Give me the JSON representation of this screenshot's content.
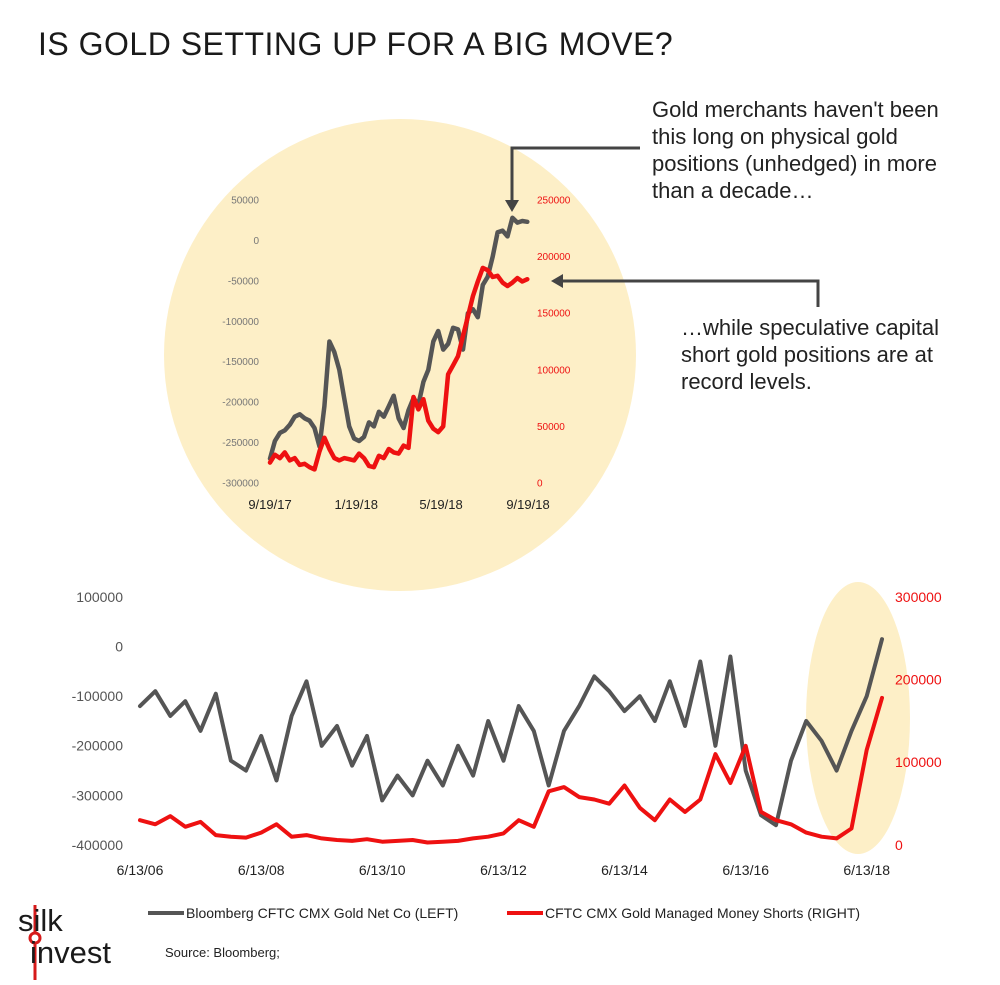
{
  "header": {
    "title": "IS GOLD SETTING UP FOR A BIG MOVE?"
  },
  "callouts": {
    "top": "Gold merchants haven't been this long on physical gold positions (unhedged) in more than a decade…",
    "bottom": "…while speculative capital short gold positions are at record levels."
  },
  "legend": {
    "left_label": "Bloomberg CFTC CMX Gold Net Co (LEFT)",
    "right_label": "CFTC CMX Gold Managed Money Shorts (RIGHT)"
  },
  "source": "Source:  Bloomberg;",
  "logo": {
    "line1": "silk",
    "line2": "invest"
  },
  "colors": {
    "net": "#555555",
    "shorts": "#ee1111",
    "highlight": "#fdefc7"
  },
  "chart_data": [
    {
      "type": "line",
      "title": "",
      "x_tick_labels": [
        "9/19/17",
        "1/19/18",
        "5/19/18",
        "9/19/18"
      ],
      "y_left_ticks": [
        50000,
        0,
        -50000,
        -100000,
        -150000,
        -200000,
        -250000,
        -300000
      ],
      "y_left_tick_labels": [
        "50000",
        "0",
        "-50000",
        "-100000",
        "-150000",
        "-200000",
        "-250000",
        "-300000"
      ],
      "y_right_ticks": [
        250000,
        200000,
        150000,
        100000,
        50000,
        0
      ],
      "y_right_tick_labels": [
        "250000",
        "200000",
        "150000",
        "100000",
        "50000",
        "0"
      ],
      "y_left_range": [
        -300000,
        50000
      ],
      "y_right_range": [
        0,
        250000
      ],
      "grid": false,
      "series": [
        {
          "axis": "left",
          "x": [
            "2017-09-19",
            "2017-09-26",
            "2017-10-03",
            "2017-10-10",
            "2017-10-17",
            "2017-10-24",
            "2017-10-31",
            "2017-11-07",
            "2017-11-14",
            "2017-11-21",
            "2017-11-28",
            "2017-12-05",
            "2017-12-12",
            "2017-12-19",
            "2017-12-26",
            "2018-01-02",
            "2018-01-09",
            "2018-01-16",
            "2018-01-23",
            "2018-01-30",
            "2018-02-06",
            "2018-02-13",
            "2018-02-20",
            "2018-02-27",
            "2018-03-06",
            "2018-03-13",
            "2018-03-20",
            "2018-03-27",
            "2018-04-03",
            "2018-04-10",
            "2018-04-17",
            "2018-04-24",
            "2018-05-01",
            "2018-05-08",
            "2018-05-15",
            "2018-05-22",
            "2018-05-29",
            "2018-06-05",
            "2018-06-12",
            "2018-06-19",
            "2018-06-26",
            "2018-07-03",
            "2018-07-10",
            "2018-07-17",
            "2018-07-24",
            "2018-07-31",
            "2018-08-07",
            "2018-08-14",
            "2018-08-21",
            "2018-08-28",
            "2018-09-04",
            "2018-09-11",
            "2018-09-18"
          ],
          "values": [
            -270000,
            -248000,
            -238000,
            -235000,
            -228000,
            -218000,
            -215000,
            -220000,
            -223000,
            -232000,
            -255000,
            -205000,
            -125000,
            -138000,
            -160000,
            -195000,
            -230000,
            -245000,
            -248000,
            -243000,
            -225000,
            -230000,
            -212000,
            -218000,
            -205000,
            -192000,
            -220000,
            -232000,
            -210000,
            -195000,
            -203000,
            -175000,
            -160000,
            -125000,
            -112000,
            -135000,
            -128000,
            -108000,
            -110000,
            -135000,
            -90000,
            -85000,
            -95000,
            -55000,
            -45000,
            -20000,
            10000,
            12000,
            5000,
            28000,
            22000,
            24000,
            23000
          ]
        },
        {
          "axis": "right",
          "x": [
            "2017-09-19",
            "2017-09-26",
            "2017-10-03",
            "2017-10-10",
            "2017-10-17",
            "2017-10-24",
            "2017-10-31",
            "2017-11-07",
            "2017-11-14",
            "2017-11-21",
            "2017-11-28",
            "2017-12-05",
            "2017-12-12",
            "2017-12-19",
            "2017-12-26",
            "2018-01-02",
            "2018-01-09",
            "2018-01-16",
            "2018-01-23",
            "2018-01-30",
            "2018-02-06",
            "2018-02-13",
            "2018-02-20",
            "2018-02-27",
            "2018-03-06",
            "2018-03-13",
            "2018-03-20",
            "2018-03-27",
            "2018-04-03",
            "2018-04-10",
            "2018-04-17",
            "2018-04-24",
            "2018-05-01",
            "2018-05-08",
            "2018-05-15",
            "2018-05-22",
            "2018-05-29",
            "2018-06-05",
            "2018-06-12",
            "2018-06-19",
            "2018-06-26",
            "2018-07-03",
            "2018-07-10",
            "2018-07-17",
            "2018-07-24",
            "2018-07-31",
            "2018-08-07",
            "2018-08-14",
            "2018-08-21",
            "2018-08-28",
            "2018-09-04",
            "2018-09-11",
            "2018-09-18"
          ],
          "values": [
            18000,
            25000,
            22000,
            27000,
            20000,
            22000,
            16000,
            17000,
            14000,
            12000,
            28000,
            40000,
            30000,
            22000,
            20000,
            22000,
            21000,
            20000,
            26000,
            22000,
            15000,
            14000,
            24000,
            22000,
            30000,
            27000,
            26000,
            33000,
            31000,
            76000,
            65000,
            74000,
            55000,
            48000,
            45000,
            50000,
            96000,
            104000,
            112000,
            130000,
            147000,
            165000,
            178000,
            190000,
            188000,
            182000,
            183000,
            177000,
            174000,
            177000,
            181000,
            178000,
            180000
          ]
        }
      ]
    },
    {
      "type": "line",
      "title": "",
      "x_tick_labels": [
        "6/13/06",
        "6/13/08",
        "6/13/10",
        "6/13/12",
        "6/13/14",
        "6/13/16",
        "6/13/18"
      ],
      "y_left_ticks": [
        100000,
        0,
        -100000,
        -200000,
        -300000,
        -400000
      ],
      "y_left_tick_labels": [
        "100000",
        "0",
        "-100000",
        "-200000",
        "-300000",
        "-400000"
      ],
      "y_right_ticks": [
        300000,
        200000,
        100000,
        0
      ],
      "y_right_tick_labels": [
        "300000",
        "200000",
        "100000",
        "0"
      ],
      "y_left_range": [
        -400000,
        100000
      ],
      "y_right_range": [
        0,
        300000
      ],
      "grid": false,
      "series": [
        {
          "axis": "left",
          "x": [
            "2006-06-13",
            "2006-09-13",
            "2006-12-13",
            "2007-03-13",
            "2007-06-13",
            "2007-09-13",
            "2007-12-13",
            "2008-03-13",
            "2008-06-13",
            "2008-09-13",
            "2008-12-13",
            "2009-03-13",
            "2009-06-13",
            "2009-09-13",
            "2009-12-13",
            "2010-03-13",
            "2010-06-13",
            "2010-09-13",
            "2010-12-13",
            "2011-03-13",
            "2011-06-13",
            "2011-09-13",
            "2011-12-13",
            "2012-03-13",
            "2012-06-13",
            "2012-09-13",
            "2012-12-13",
            "2013-03-13",
            "2013-06-13",
            "2013-09-13",
            "2013-12-13",
            "2014-03-13",
            "2014-06-13",
            "2014-09-13",
            "2014-12-13",
            "2015-03-13",
            "2015-06-13",
            "2015-09-13",
            "2015-12-13",
            "2016-03-13",
            "2016-06-13",
            "2016-09-13",
            "2016-12-13",
            "2017-03-13",
            "2017-06-13",
            "2017-09-13",
            "2017-12-13",
            "2018-03-13",
            "2018-06-13",
            "2018-09-13"
          ],
          "values": [
            -120000,
            -90000,
            -140000,
            -110000,
            -170000,
            -95000,
            -230000,
            -250000,
            -180000,
            -270000,
            -140000,
            -70000,
            -200000,
            -160000,
            -240000,
            -180000,
            -310000,
            -260000,
            -300000,
            -230000,
            -280000,
            -200000,
            -260000,
            -150000,
            -230000,
            -120000,
            -170000,
            -280000,
            -170000,
            -120000,
            -60000,
            -90000,
            -130000,
            -100000,
            -150000,
            -70000,
            -160000,
            -30000,
            -200000,
            -20000,
            -250000,
            -340000,
            -360000,
            -230000,
            -150000,
            -190000,
            -250000,
            -170000,
            -100000,
            15000
          ]
        },
        {
          "axis": "right",
          "x": [
            "2006-06-13",
            "2006-09-13",
            "2006-12-13",
            "2007-03-13",
            "2007-06-13",
            "2007-09-13",
            "2007-12-13",
            "2008-03-13",
            "2008-06-13",
            "2008-09-13",
            "2008-12-13",
            "2009-03-13",
            "2009-06-13",
            "2009-09-13",
            "2009-12-13",
            "2010-03-13",
            "2010-06-13",
            "2010-09-13",
            "2010-12-13",
            "2011-03-13",
            "2011-06-13",
            "2011-09-13",
            "2011-12-13",
            "2012-03-13",
            "2012-06-13",
            "2012-09-13",
            "2012-12-13",
            "2013-03-13",
            "2013-06-13",
            "2013-09-13",
            "2013-12-13",
            "2014-03-13",
            "2014-06-13",
            "2014-09-13",
            "2014-12-13",
            "2015-03-13",
            "2015-06-13",
            "2015-09-13",
            "2015-12-13",
            "2016-03-13",
            "2016-06-13",
            "2016-09-13",
            "2016-12-13",
            "2017-03-13",
            "2017-06-13",
            "2017-09-13",
            "2017-12-13",
            "2018-03-13",
            "2018-06-13",
            "2018-09-13"
          ],
          "values": [
            30000,
            25000,
            35000,
            22000,
            28000,
            12000,
            10000,
            9000,
            15000,
            25000,
            10000,
            12000,
            8000,
            6000,
            5000,
            7000,
            4000,
            5000,
            6000,
            3000,
            4000,
            5000,
            8000,
            10000,
            14000,
            30000,
            22000,
            65000,
            70000,
            58000,
            55000,
            50000,
            72000,
            45000,
            30000,
            55000,
            40000,
            55000,
            110000,
            75000,
            120000,
            40000,
            30000,
            25000,
            15000,
            10000,
            8000,
            20000,
            115000,
            178000
          ]
        }
      ]
    }
  ]
}
